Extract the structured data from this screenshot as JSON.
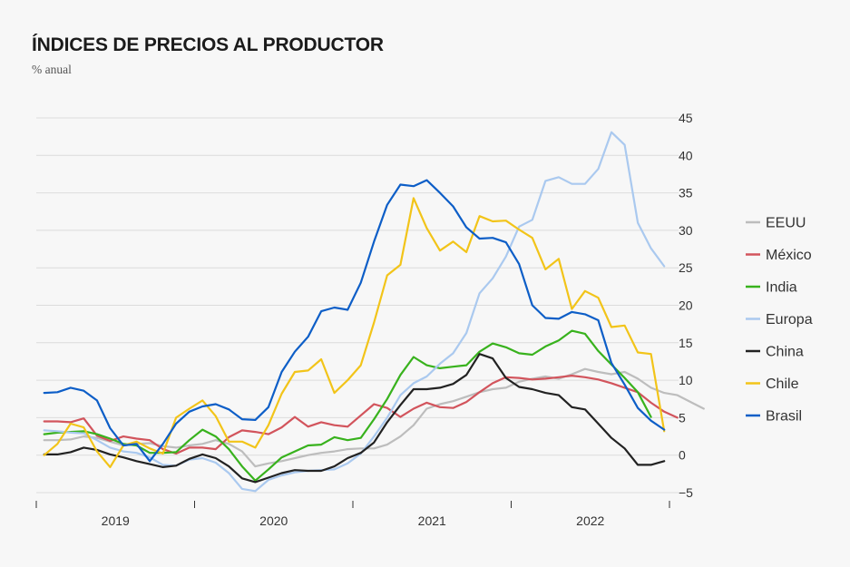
{
  "chart_data": {
    "type": "line",
    "title": "ÍNDICES DE PRECIOS AL PRODUCTOR",
    "subtitle": "% anual",
    "xlabel": "",
    "ylabel": "",
    "ylim": [
      -5,
      45
    ],
    "yticks": [
      -5,
      0,
      5,
      10,
      15,
      20,
      25,
      30,
      35,
      40,
      45
    ],
    "xtick_labels": [
      "2019",
      "2020",
      "2021",
      "2022"
    ],
    "x_start": "2018-12",
    "legend_position": "right",
    "grid": true,
    "series": [
      {
        "name": "EEUU",
        "color": "#bdbdbd",
        "values": [
          2.0,
          2.0,
          2.1,
          2.5,
          2.3,
          1.8,
          1.3,
          1.5,
          1.6,
          1.2,
          1.0,
          1.3,
          1.5,
          2.0,
          1.5,
          0.5,
          -1.5,
          -1.1,
          -0.8,
          -0.4,
          0.0,
          0.3,
          0.5,
          0.8,
          0.9,
          0.9,
          1.4,
          2.5,
          4.0,
          6.2,
          6.8,
          7.2,
          7.8,
          8.4,
          8.8,
          9.0,
          9.8,
          10.2,
          10.5,
          10.2,
          10.8,
          11.5,
          11.1,
          10.8,
          11.1,
          10.2,
          9.0,
          8.3,
          8.0,
          7.1,
          6.2
        ]
      },
      {
        "name": "México",
        "color": "#d2545c",
        "values": [
          4.5,
          4.5,
          4.4,
          4.9,
          2.6,
          1.9,
          2.5,
          2.2,
          2.0,
          0.8,
          0.2,
          1.0,
          1.0,
          0.8,
          2.4,
          3.3,
          3.1,
          2.8,
          3.7,
          5.1,
          3.8,
          4.4,
          4.0,
          3.8,
          5.3,
          6.8,
          6.3,
          5.1,
          6.2,
          7.0,
          6.4,
          6.3,
          7.1,
          8.4,
          9.6,
          10.4,
          10.3,
          10.1,
          10.2,
          10.4,
          10.6,
          10.4,
          10.1,
          9.6,
          9.0,
          8.4,
          7.0,
          5.8,
          5.0
        ]
      },
      {
        "name": "India",
        "color": "#38b21d",
        "values": [
          2.8,
          3.0,
          3.1,
          3.2,
          2.8,
          2.2,
          1.5,
          1.3,
          0.3,
          0.3,
          0.4,
          2.0,
          3.4,
          2.5,
          0.8,
          -1.5,
          -3.4,
          -1.9,
          -0.3,
          0.5,
          1.3,
          1.4,
          2.4,
          2.0,
          2.3,
          4.8,
          7.5,
          10.7,
          13.1,
          12.0,
          11.6,
          11.8,
          12.0,
          13.8,
          14.9,
          14.4,
          13.6,
          13.4,
          14.5,
          15.3,
          16.6,
          16.2,
          13.9,
          12.1,
          10.3,
          8.4,
          5.1
        ]
      },
      {
        "name": "Europa",
        "color": "#aac9ef",
        "values": [
          3.3,
          3.2,
          3.0,
          2.9,
          2.0,
          1.0,
          0.5,
          0.3,
          -0.3,
          -1.3,
          -1.4,
          -0.6,
          -0.4,
          -1.0,
          -2.4,
          -4.5,
          -4.8,
          -3.3,
          -2.7,
          -2.3,
          -2.1,
          -2.0,
          -1.9,
          -1.1,
          0.2,
          2.5,
          5.0,
          8.0,
          9.6,
          10.5,
          12.2,
          13.6,
          16.3,
          21.6,
          23.6,
          26.5,
          30.5,
          31.4,
          36.6,
          37.1,
          36.2,
          36.2,
          38.2,
          43.1,
          41.4,
          31.0,
          27.6,
          25.2
        ]
      },
      {
        "name": "China",
        "color": "#222222",
        "values": [
          0.1,
          0.1,
          0.4,
          1.0,
          0.7,
          0.1,
          -0.3,
          -0.8,
          -1.2,
          -1.6,
          -1.4,
          -0.5,
          0.1,
          -0.4,
          -1.5,
          -3.1,
          -3.6,
          -3.0,
          -2.4,
          -2.0,
          -2.1,
          -2.1,
          -1.5,
          -0.4,
          0.3,
          1.7,
          4.4,
          6.7,
          8.8,
          8.8,
          9.0,
          9.5,
          10.7,
          13.5,
          12.9,
          10.3,
          9.1,
          8.8,
          8.3,
          8.0,
          6.4,
          6.1,
          4.2,
          2.3,
          0.9,
          -1.3,
          -1.3,
          -0.8
        ]
      },
      {
        "name": "Chile",
        "color": "#f2c419",
        "values": [
          0.0,
          1.5,
          4.2,
          3.7,
          0.5,
          -1.6,
          1.3,
          1.8,
          0.9,
          0.2,
          5.0,
          6.2,
          7.3,
          5.2,
          1.8,
          1.8,
          1.0,
          4.0,
          8.2,
          11.1,
          11.3,
          12.8,
          8.3,
          10.0,
          12.0,
          17.7,
          24.0,
          25.4,
          34.3,
          30.3,
          27.3,
          28.5,
          27.1,
          31.9,
          31.2,
          31.3,
          30.1,
          29.0,
          24.8,
          26.2,
          19.5,
          21.9,
          21.0,
          17.1,
          17.3,
          13.7,
          13.5,
          3.2
        ]
      },
      {
        "name": "Brasil",
        "color": "#0d5ec7",
        "values": [
          8.3,
          8.4,
          9.0,
          8.6,
          7.3,
          3.6,
          1.3,
          1.5,
          -0.8,
          1.5,
          4.2,
          5.8,
          6.5,
          6.8,
          6.1,
          4.8,
          4.7,
          6.4,
          11.1,
          13.8,
          15.8,
          19.2,
          19.7,
          19.4,
          23.0,
          28.5,
          33.4,
          36.1,
          35.9,
          36.7,
          35.0,
          33.2,
          30.4,
          28.9,
          29.0,
          28.4,
          25.5,
          20.0,
          18.3,
          18.2,
          19.1,
          18.8,
          18.0,
          12.3,
          9.4,
          6.3,
          4.6,
          3.4
        ]
      }
    ]
  }
}
